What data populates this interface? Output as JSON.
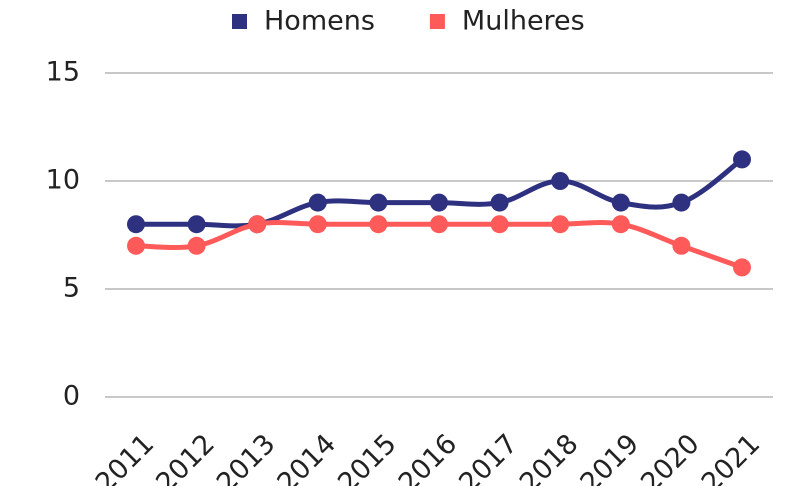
{
  "chart_data": {
    "type": "line",
    "categories": [
      "2011",
      "2012",
      "2013",
      "2014",
      "2015",
      "2016",
      "2017",
      "2018",
      "2019",
      "2020",
      "2021"
    ],
    "series": [
      {
        "name": "Homens",
        "color": "#2e3180",
        "values": [
          8,
          8,
          8,
          9,
          9,
          9,
          9,
          10,
          9,
          9,
          11
        ]
      },
      {
        "name": "Mulheres",
        "color": "#ff5a5a",
        "values": [
          7,
          7,
          8,
          8,
          8,
          8,
          8,
          8,
          8,
          7,
          6
        ]
      }
    ],
    "ylim": [
      0,
      15
    ],
    "yticks": [
      0,
      5,
      10,
      15
    ],
    "grid": true,
    "legend": "top"
  }
}
